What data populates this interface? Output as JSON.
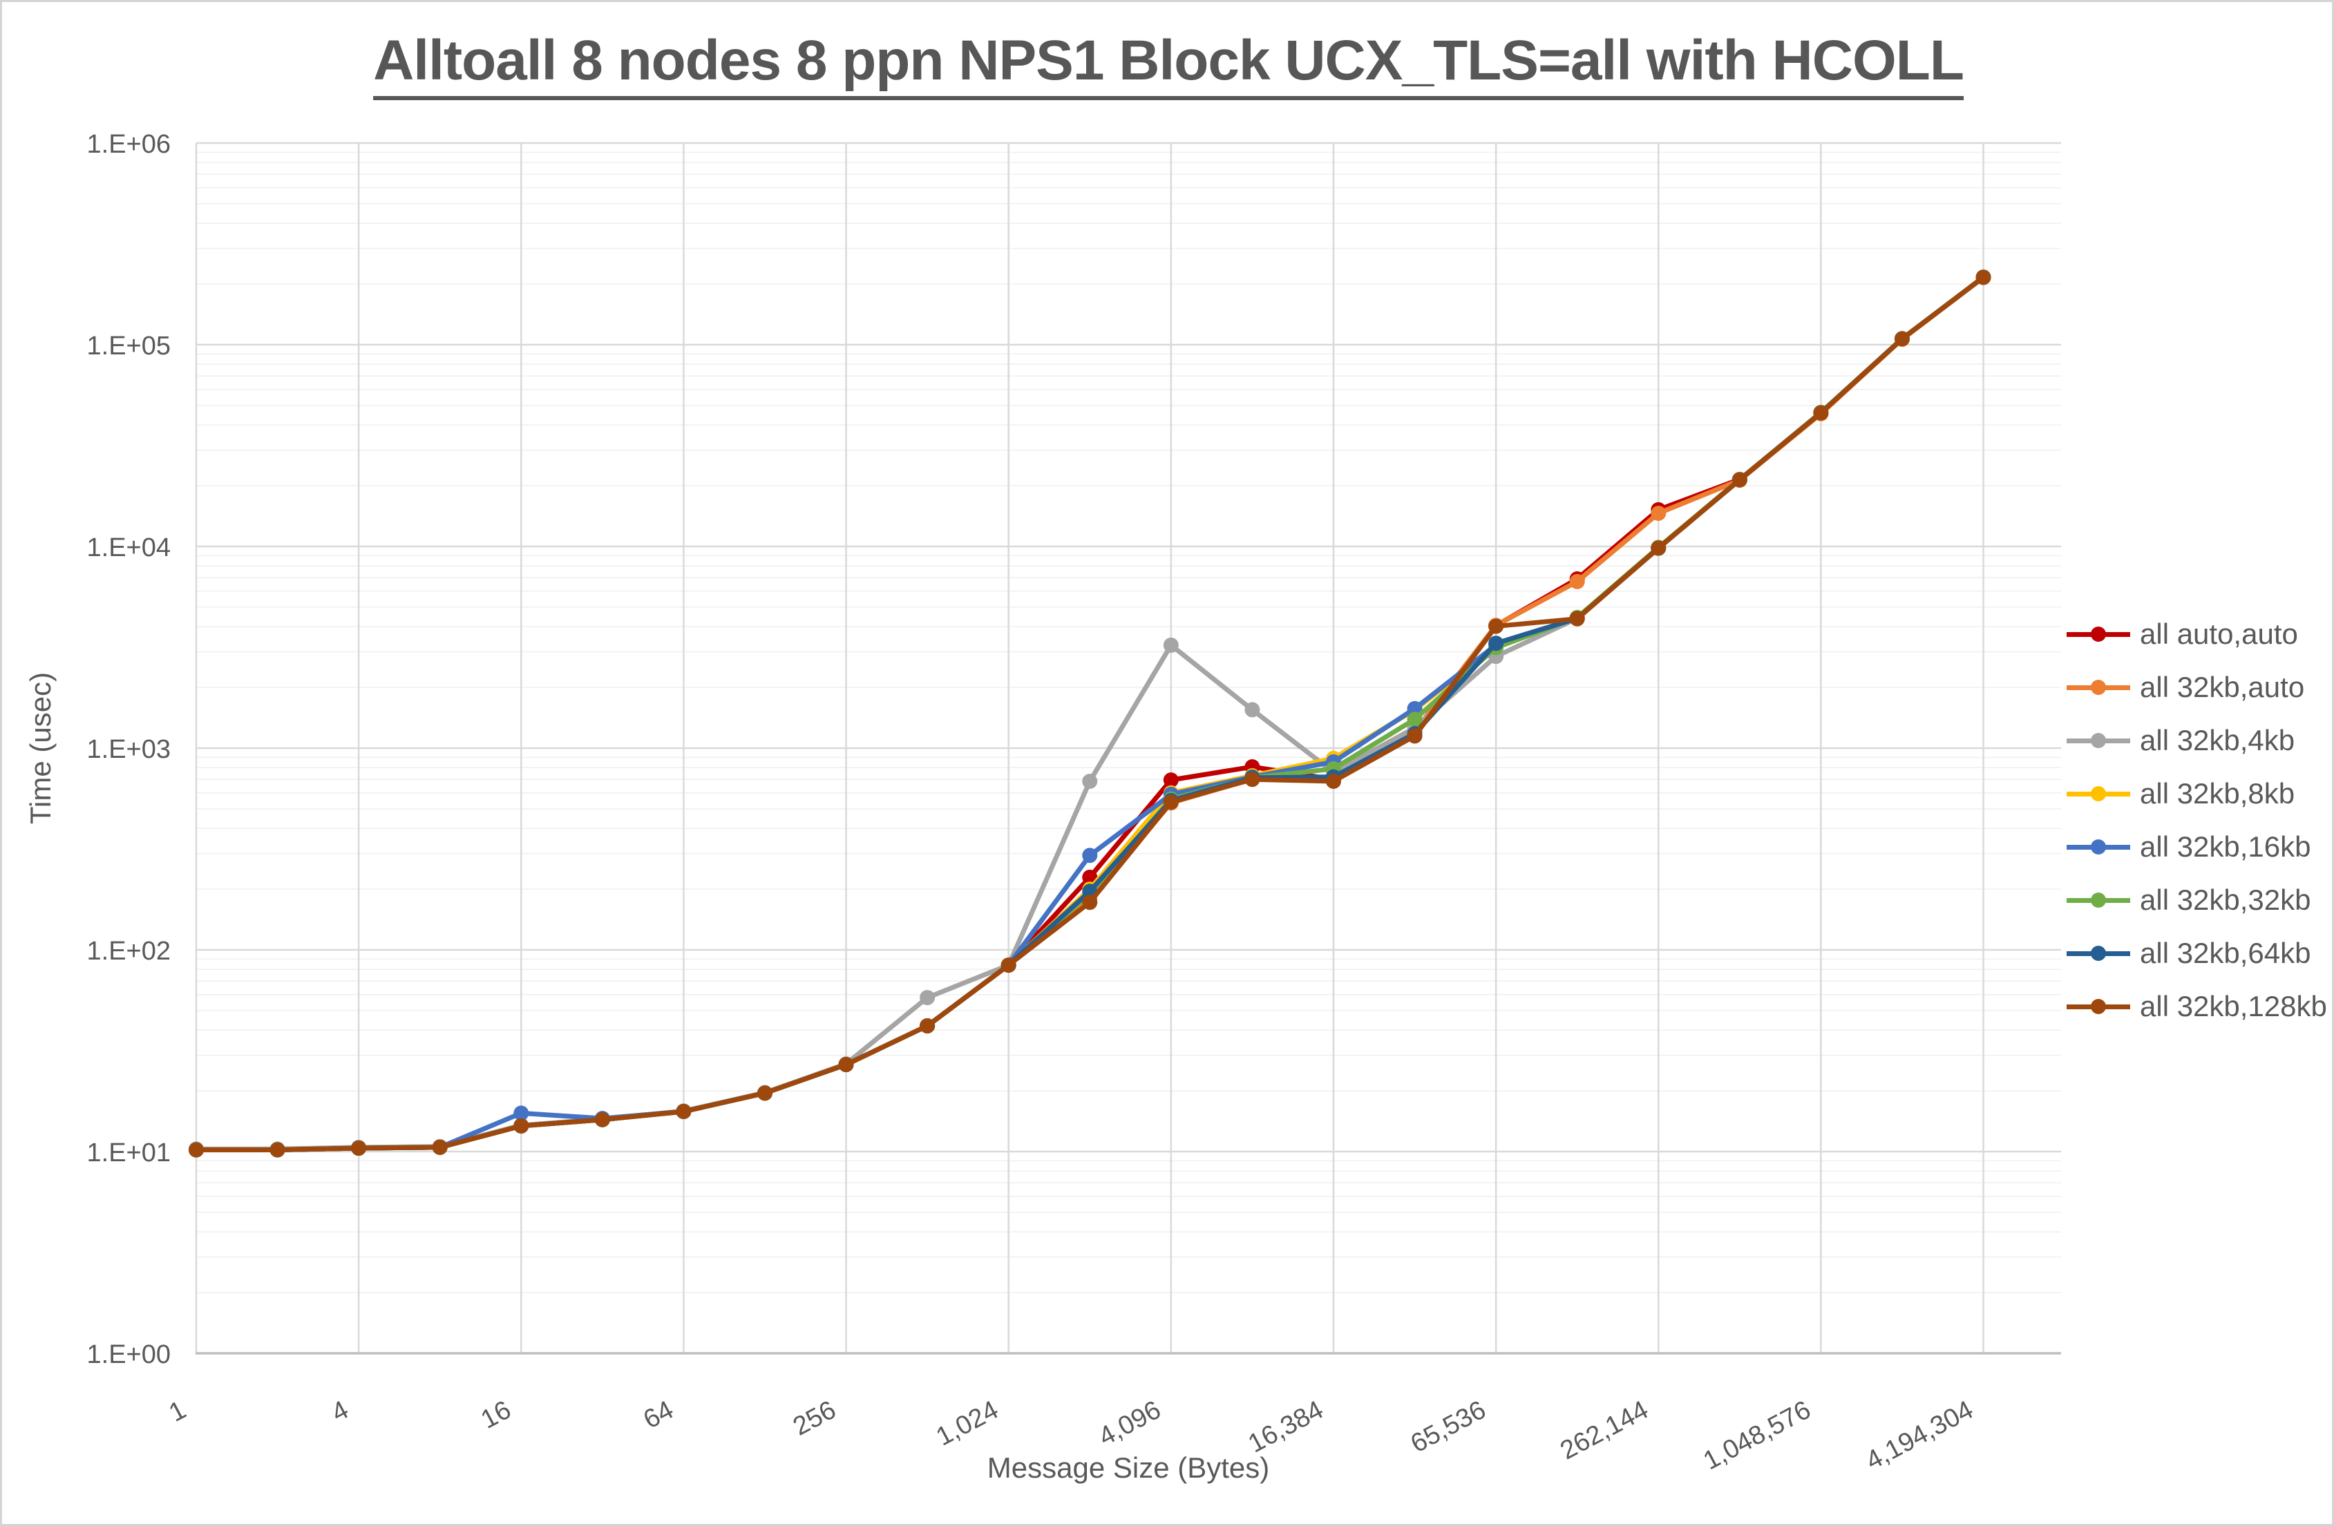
{
  "frame": {
    "background": "#ffffff",
    "border_color": "#d4d4d4"
  },
  "title": {
    "color": "#575757"
  },
  "axis_color": "#595959",
  "chart_data": {
    "type": "line",
    "title": "Alltoall 8 nodes 8 ppn NPS1 Block UCX_TLS=all with HCOLL",
    "xlabel": "Message Size (Bytes)",
    "ylabel": "Time (usec)",
    "x_scale": "log2",
    "y_scale": "log10",
    "ylim": [
      1,
      1000000
    ],
    "grid": true,
    "legend_position": "right",
    "y_tick_labels": [
      "1.E+00",
      "1.E+01",
      "1.E+02",
      "1.E+03",
      "1.E+04",
      "1.E+05",
      "1.E+06"
    ],
    "x_tick_labels": [
      "1",
      "4",
      "16",
      "64",
      "256",
      "1,024",
      "4,096",
      "16,384",
      "65,536",
      "262,144",
      "1,048,576",
      "4,194,304"
    ],
    "sizes": [
      1,
      2,
      4,
      8,
      16,
      32,
      64,
      128,
      256,
      512,
      1024,
      2048,
      4096,
      8192,
      16384,
      32768,
      65536,
      131072,
      262144,
      524288,
      1048576,
      2097152,
      4194304
    ],
    "series": [
      {
        "name": "all auto,auto",
        "color": "#C00000",
        "values": [
          10.2,
          10.2,
          10.4,
          10.5,
          13.4,
          14.4,
          15.8,
          19.5,
          27,
          42,
          84,
          229,
          695,
          808,
          700,
          1150,
          4050,
          6900,
          15200,
          21500,
          46000,
          107000,
          216000
        ]
      },
      {
        "name": "all 32kb,auto",
        "color": "#ED7D31",
        "values": [
          10.2,
          10.2,
          10.4,
          10.5,
          13.4,
          14.4,
          15.8,
          19.5,
          27,
          42,
          84,
          180,
          535,
          705,
          720,
          1210,
          4060,
          6700,
          14600,
          21300,
          45500,
          106500,
          215500
        ]
      },
      {
        "name": "all 32kb,4kb",
        "color": "#A5A5A5",
        "values": [
          10.3,
          10.3,
          10.5,
          10.6,
          13.5,
          14.5,
          15.9,
          19.6,
          27.2,
          58,
          84,
          685,
          3240,
          1550,
          760,
          1260,
          2850,
          4400,
          9800,
          21400,
          46000,
          107000,
          216000
        ]
      },
      {
        "name": "all 32kb,8kb",
        "color": "#FFC000",
        "values": [
          10.2,
          10.2,
          10.4,
          10.5,
          13.4,
          14.4,
          15.8,
          19.5,
          27,
          42,
          84,
          200,
          600,
          730,
          890,
          1545,
          3200,
          4450,
          9900,
          21500,
          46200,
          107200,
          216200
        ]
      },
      {
        "name": "all 32kb,16kb",
        "color": "#4472C4",
        "values": [
          10.2,
          10.2,
          10.4,
          10.5,
          15.5,
          14.6,
          15.8,
          19.5,
          27,
          42,
          84,
          294,
          590,
          720,
          855,
          1570,
          3250,
          4420,
          9850,
          21450,
          46100,
          107100,
          216100
        ]
      },
      {
        "name": "all 32kb,32kb",
        "color": "#70AD47",
        "values": [
          10.2,
          10.2,
          10.4,
          10.5,
          13.4,
          14.4,
          15.8,
          19.5,
          27,
          42,
          84,
          190,
          560,
          713,
          790,
          1390,
          3150,
          4430,
          9870,
          21420,
          46050,
          107050,
          216050
        ]
      },
      {
        "name": "all 32kb,64kb",
        "color": "#255E91",
        "values": [
          10.2,
          10.2,
          10.4,
          10.5,
          13.4,
          14.4,
          15.8,
          19.5,
          27,
          42,
          84,
          195,
          550,
          713,
          720,
          1180,
          3310,
          4400,
          9820,
          21400,
          46000,
          107000,
          216000
        ]
      },
      {
        "name": "all 32kb,128kb",
        "color": "#9E480E",
        "values": [
          10.2,
          10.2,
          10.4,
          10.5,
          13.4,
          14.4,
          15.8,
          19.5,
          27,
          42,
          84,
          172,
          540,
          700,
          685,
          1150,
          4020,
          4380,
          9800,
          21380,
          45900,
          106900,
          215800
        ]
      }
    ]
  }
}
